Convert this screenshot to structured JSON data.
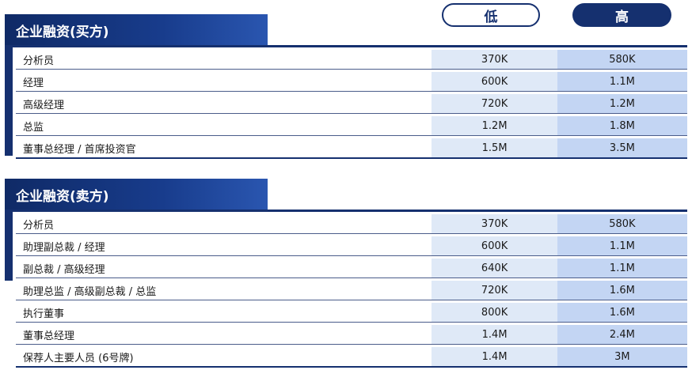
{
  "columns": {
    "low": "低",
    "high": "高"
  },
  "sections": [
    {
      "title": "企业融资(买方)",
      "rows": [
        {
          "role": "分析员",
          "low": "370K",
          "high": "580K"
        },
        {
          "role": "经理",
          "low": "600K",
          "high": "1.1M"
        },
        {
          "role": "高级经理",
          "low": "720K",
          "high": "1.2M"
        },
        {
          "role": "总监",
          "low": "1.2M",
          "high": "1.8M"
        },
        {
          "role": "董事总经理 / 首席投资官",
          "low": "1.5M",
          "high": "3.5M"
        }
      ]
    },
    {
      "title": "企业融资(卖方)",
      "rows": [
        {
          "role": "分析员",
          "low": "370K",
          "high": "580K"
        },
        {
          "role": "助理副总裁 / 经理",
          "low": "600K",
          "high": "1.1M"
        },
        {
          "role": "副总裁 / 高级经理",
          "low": "640K",
          "high": "1.1M"
        },
        {
          "role": "助理总监 / 高级副总裁 / 总监",
          "low": "720K",
          "high": "1.6M"
        },
        {
          "role": "执行董事",
          "low": "800K",
          "high": "1.6M"
        },
        {
          "role": "董事总经理",
          "low": "1.4M",
          "high": "2.4M"
        },
        {
          "role": "保荐人主要人员 (6号牌)",
          "low": "1.4M",
          "high": "3M"
        }
      ]
    }
  ],
  "colors": {
    "navy": "#15306f",
    "low_fill": "#dfe9f7",
    "high_fill": "#c3d5f3"
  }
}
